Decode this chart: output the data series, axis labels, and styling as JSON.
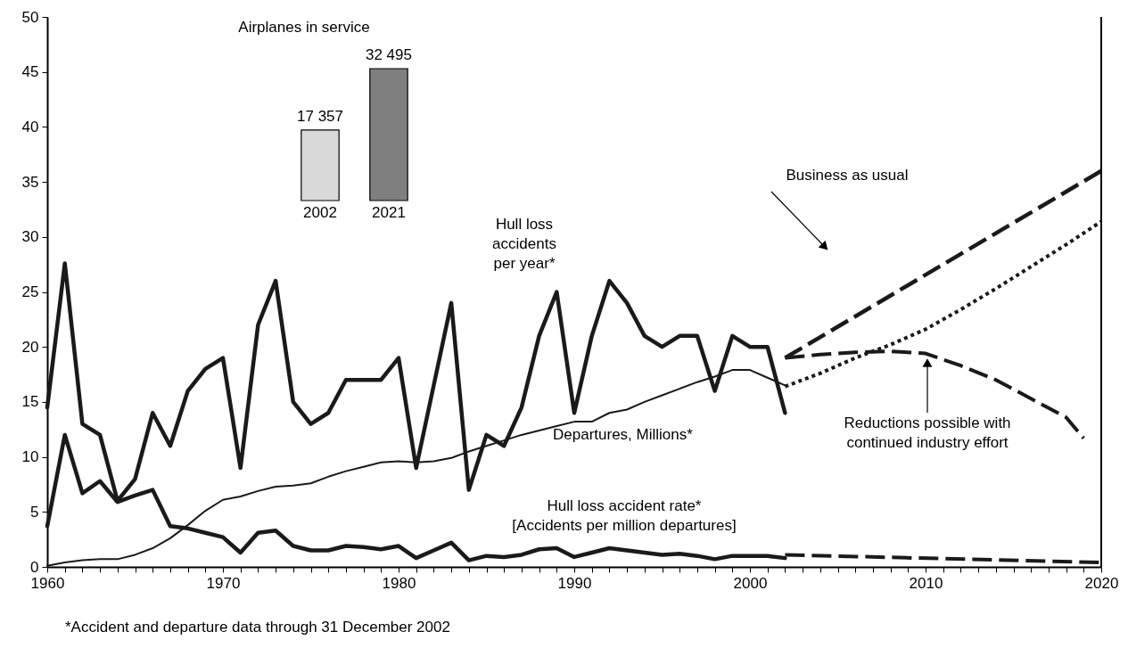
{
  "chart_data": [
    {
      "type": "line",
      "xlim": [
        1960,
        2020
      ],
      "ylim": [
        0,
        50
      ],
      "xticks": [
        1960,
        {
          "value": 1961,
          "label": null
        },
        {
          "value": 1962,
          "label": null
        },
        {
          "value": 1963,
          "label": null
        },
        {
          "value": 1964,
          "label": null
        },
        {
          "value": 1965,
          "label": null
        },
        {
          "value": 1966,
          "label": null
        },
        {
          "value": 1967,
          "label": null
        },
        {
          "value": 1968,
          "label": null
        },
        {
          "value": 1969,
          "label": null
        },
        1970,
        {
          "value": 1971,
          "label": null
        },
        {
          "value": 1972,
          "label": null
        },
        {
          "value": 1973,
          "label": null
        },
        {
          "value": 1974,
          "label": null
        },
        {
          "value": 1975,
          "label": null
        },
        {
          "value": 1976,
          "label": null
        },
        {
          "value": 1977,
          "label": null
        },
        {
          "value": 1978,
          "label": null
        },
        {
          "value": 1979,
          "label": null
        },
        1980,
        {
          "value": 1981,
          "label": null
        },
        {
          "value": 1982,
          "label": null
        },
        {
          "value": 1983,
          "label": null
        },
        {
          "value": 1984,
          "label": null
        },
        {
          "value": 1985,
          "label": null
        },
        {
          "value": 1986,
          "label": null
        },
        {
          "value": 1987,
          "label": null
        },
        {
          "value": 1988,
          "label": null
        },
        {
          "value": 1989,
          "label": null
        },
        1990,
        {
          "value": 1991,
          "label": null
        },
        {
          "value": 1992,
          "label": null
        },
        {
          "value": 1993,
          "label": null
        },
        {
          "value": 1994,
          "label": null
        },
        {
          "value": 1995,
          "label": null
        },
        {
          "value": 1996,
          "label": null
        },
        {
          "value": 1997,
          "label": null
        },
        {
          "value": 1998,
          "label": null
        },
        {
          "value": 1999,
          "label": null
        },
        2000,
        {
          "value": 2001,
          "label": null
        },
        {
          "value": 2002,
          "label": null
        },
        {
          "value": 2003,
          "label": null
        },
        {
          "value": 2004,
          "label": null
        },
        {
          "value": 2005,
          "label": null
        },
        {
          "value": 2006,
          "label": null
        },
        {
          "value": 2007,
          "label": null
        },
        {
          "value": 2008,
          "label": null
        },
        {
          "value": 2009,
          "label": null
        },
        2010,
        {
          "value": 2011,
          "label": null
        },
        {
          "value": 2012,
          "label": null
        },
        {
          "value": 2013,
          "label": null
        },
        {
          "value": 2014,
          "label": null
        },
        {
          "value": 2015,
          "label": null
        },
        {
          "value": 2016,
          "label": null
        },
        {
          "value": 2017,
          "label": null
        },
        {
          "value": 2018,
          "label": null
        },
        {
          "value": 2019,
          "label": null
        },
        2020
      ],
      "yticks": [
        0,
        5,
        10,
        15,
        20,
        25,
        30,
        35,
        40,
        45,
        50
      ],
      "grid": false,
      "legend": false,
      "annotations": [
        "*Accident and departure data through 31 December 2002"
      ],
      "series": [
        {
          "name": "Hull loss accidents per year*",
          "color": "#1a1a1a",
          "line_style": "solid",
          "x": [
            1960,
            1961,
            1962,
            1963,
            1964,
            1965,
            1966,
            1967,
            1968,
            1969,
            1970,
            1971,
            1972,
            1973,
            1974,
            1975,
            1976,
            1977,
            1978,
            1979,
            1980,
            1981,
            1982,
            1983,
            1984,
            1985,
            1986,
            1987,
            1988,
            1989,
            1990,
            1991,
            1992,
            1993,
            1994,
            1995,
            1996,
            1997,
            1998,
            1999,
            2000,
            2001,
            2002
          ],
          "values": [
            14.5,
            27.6,
            13,
            12,
            6,
            8,
            14,
            11,
            16,
            18,
            19,
            9,
            22,
            26,
            15,
            13,
            14,
            17,
            17,
            17,
            19,
            9,
            16.5,
            24,
            7,
            12,
            11,
            14.5,
            21,
            25,
            14,
            21,
            26,
            24,
            21,
            20,
            21,
            21,
            16,
            21,
            20,
            20,
            14
          ]
        },
        {
          "name": "Departures, Millions*",
          "color": "#1a1a1a",
          "line_style": "solid",
          "x": [
            1960,
            1961,
            1962,
            1963,
            1964,
            1965,
            1966,
            1967,
            1968,
            1969,
            1970,
            1971,
            1972,
            1973,
            1974,
            1975,
            1976,
            1977,
            1978,
            1979,
            1980,
            1981,
            1982,
            1983,
            1984,
            1985,
            1986,
            1987,
            1988,
            1989,
            1990,
            1991,
            1992,
            1993,
            1994,
            1995,
            1996,
            1997,
            1998,
            1999,
            2000,
            2001,
            2002
          ],
          "values": [
            0.1,
            0.4,
            0.6,
            0.7,
            0.7,
            1.1,
            1.7,
            2.6,
            3.8,
            5.1,
            6.1,
            6.4,
            6.9,
            7.3,
            7.4,
            7.6,
            8.2,
            8.7,
            9.1,
            9.5,
            9.6,
            9.5,
            9.6,
            9.9,
            10.5,
            11.0,
            11.5,
            12.0,
            12.4,
            12.8,
            13.2,
            13.2,
            14.0,
            14.3,
            15.0,
            15.6,
            16.2,
            16.8,
            17.3,
            17.9,
            17.9,
            17.2,
            16.5
          ]
        },
        {
          "name": "Hull loss accident rate* [Accidents per million departures]",
          "color": "#1a1a1a",
          "line_style": "solid",
          "x": [
            1960,
            1961,
            1962,
            1963,
            1964,
            1965,
            1966,
            1967,
            1968,
            1969,
            1970,
            1971,
            1972,
            1973,
            1974,
            1975,
            1976,
            1977,
            1978,
            1979,
            1980,
            1981,
            1982,
            1983,
            1984,
            1985,
            1986,
            1987,
            1988,
            1989,
            1990,
            1991,
            1992,
            1993,
            1994,
            1995,
            1996,
            1997,
            1998,
            1999,
            2000,
            2001,
            2002
          ],
          "values": [
            3.7,
            12,
            6.7,
            7.8,
            5.9,
            6.5,
            7.0,
            3.7,
            3.5,
            3.1,
            2.7,
            1.3,
            3.1,
            3.3,
            1.9,
            1.5,
            1.5,
            1.9,
            1.8,
            1.6,
            1.9,
            0.8,
            1.5,
            2.2,
            0.6,
            1.0,
            0.9,
            1.1,
            1.6,
            1.7,
            0.9,
            1.3,
            1.7,
            1.5,
            1.3,
            1.1,
            1.2,
            1.0,
            0.7,
            1.0,
            1.0,
            1.0,
            0.8
          ]
        },
        {
          "name": "Business as usual",
          "color": "#1a1a1a",
          "line_style": "dashed",
          "x": [
            2002,
            2020
          ],
          "values": [
            19,
            36
          ]
        },
        {
          "name": "Reductions possible with continued industry effort",
          "color": "#1a1a1a",
          "line_style": "dashed",
          "x": [
            2002,
            2004,
            2006,
            2008,
            2010,
            2012,
            2014,
            2016,
            2018,
            2019
          ],
          "values": [
            19.0,
            19.3,
            19.5,
            19.6,
            19.4,
            18.3,
            17.0,
            15.3,
            13.6,
            11.7
          ]
        },
        {
          "color": "#1a1a1a",
          "line_style": "dotted",
          "x": [
            2002,
            2004,
            2006,
            2008,
            2010,
            2012,
            2014,
            2016,
            2018,
            2020
          ],
          "values": [
            16.4,
            17.6,
            19.0,
            20.2,
            21.6,
            23.4,
            25.3,
            27.3,
            29.3,
            31.4
          ]
        },
        {
          "color": "#1a1a1a",
          "line_style": "dashed",
          "x": [
            2002,
            2020
          ],
          "values": [
            1.1,
            0.4
          ]
        }
      ]
    },
    {
      "type": "bar",
      "title": "Airplanes in service",
      "categories": [
        "2002",
        "2021"
      ],
      "values": [
        17357,
        32495
      ],
      "colors": [
        "#d9d9d9",
        "#7f7f7f"
      ],
      "value_labels": [
        "17 357",
        "32 495"
      ]
    }
  ]
}
